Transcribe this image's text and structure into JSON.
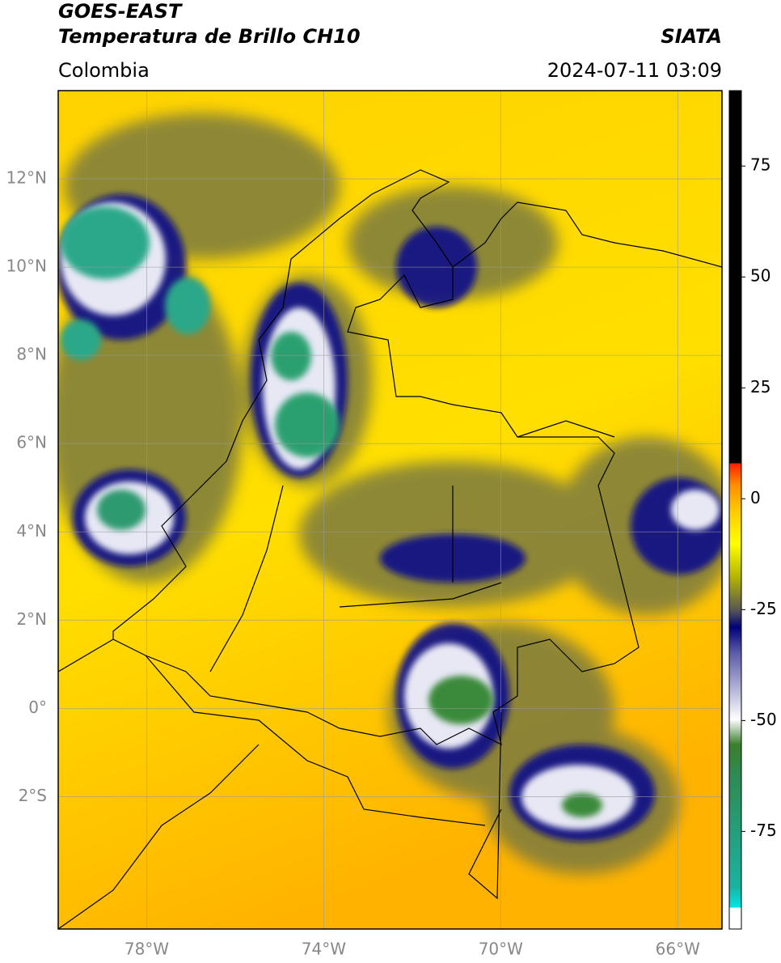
{
  "header": {
    "title": "GOES-EAST",
    "subtitle": "Temperatura de Brillo CH10",
    "source": "SIATA",
    "region": "Colombia",
    "datetime": "2024-07-11 03:09"
  },
  "map": {
    "xlim": [
      -80,
      -65
    ],
    "ylim": [
      -5,
      14
    ],
    "xticks": [
      {
        "value": -78,
        "label": "78°W"
      },
      {
        "value": -74,
        "label": "74°W"
      },
      {
        "value": -70,
        "label": "70°W"
      },
      {
        "value": -66,
        "label": "66°W"
      }
    ],
    "yticks": [
      {
        "value": 12,
        "label": "12°N"
      },
      {
        "value": 10,
        "label": "10°N"
      },
      {
        "value": 8,
        "label": "8°N"
      },
      {
        "value": 6,
        "label": "6°N"
      },
      {
        "value": 4,
        "label": "4°N"
      },
      {
        "value": 2,
        "label": "2°N"
      },
      {
        "value": 0,
        "label": "0°"
      },
      {
        "value": -2,
        "label": "2°S"
      }
    ]
  },
  "colorbar": {
    "lim": [
      -97,
      92
    ],
    "ticks": [
      75,
      50,
      25,
      0,
      -25,
      -50,
      -75
    ]
  }
}
